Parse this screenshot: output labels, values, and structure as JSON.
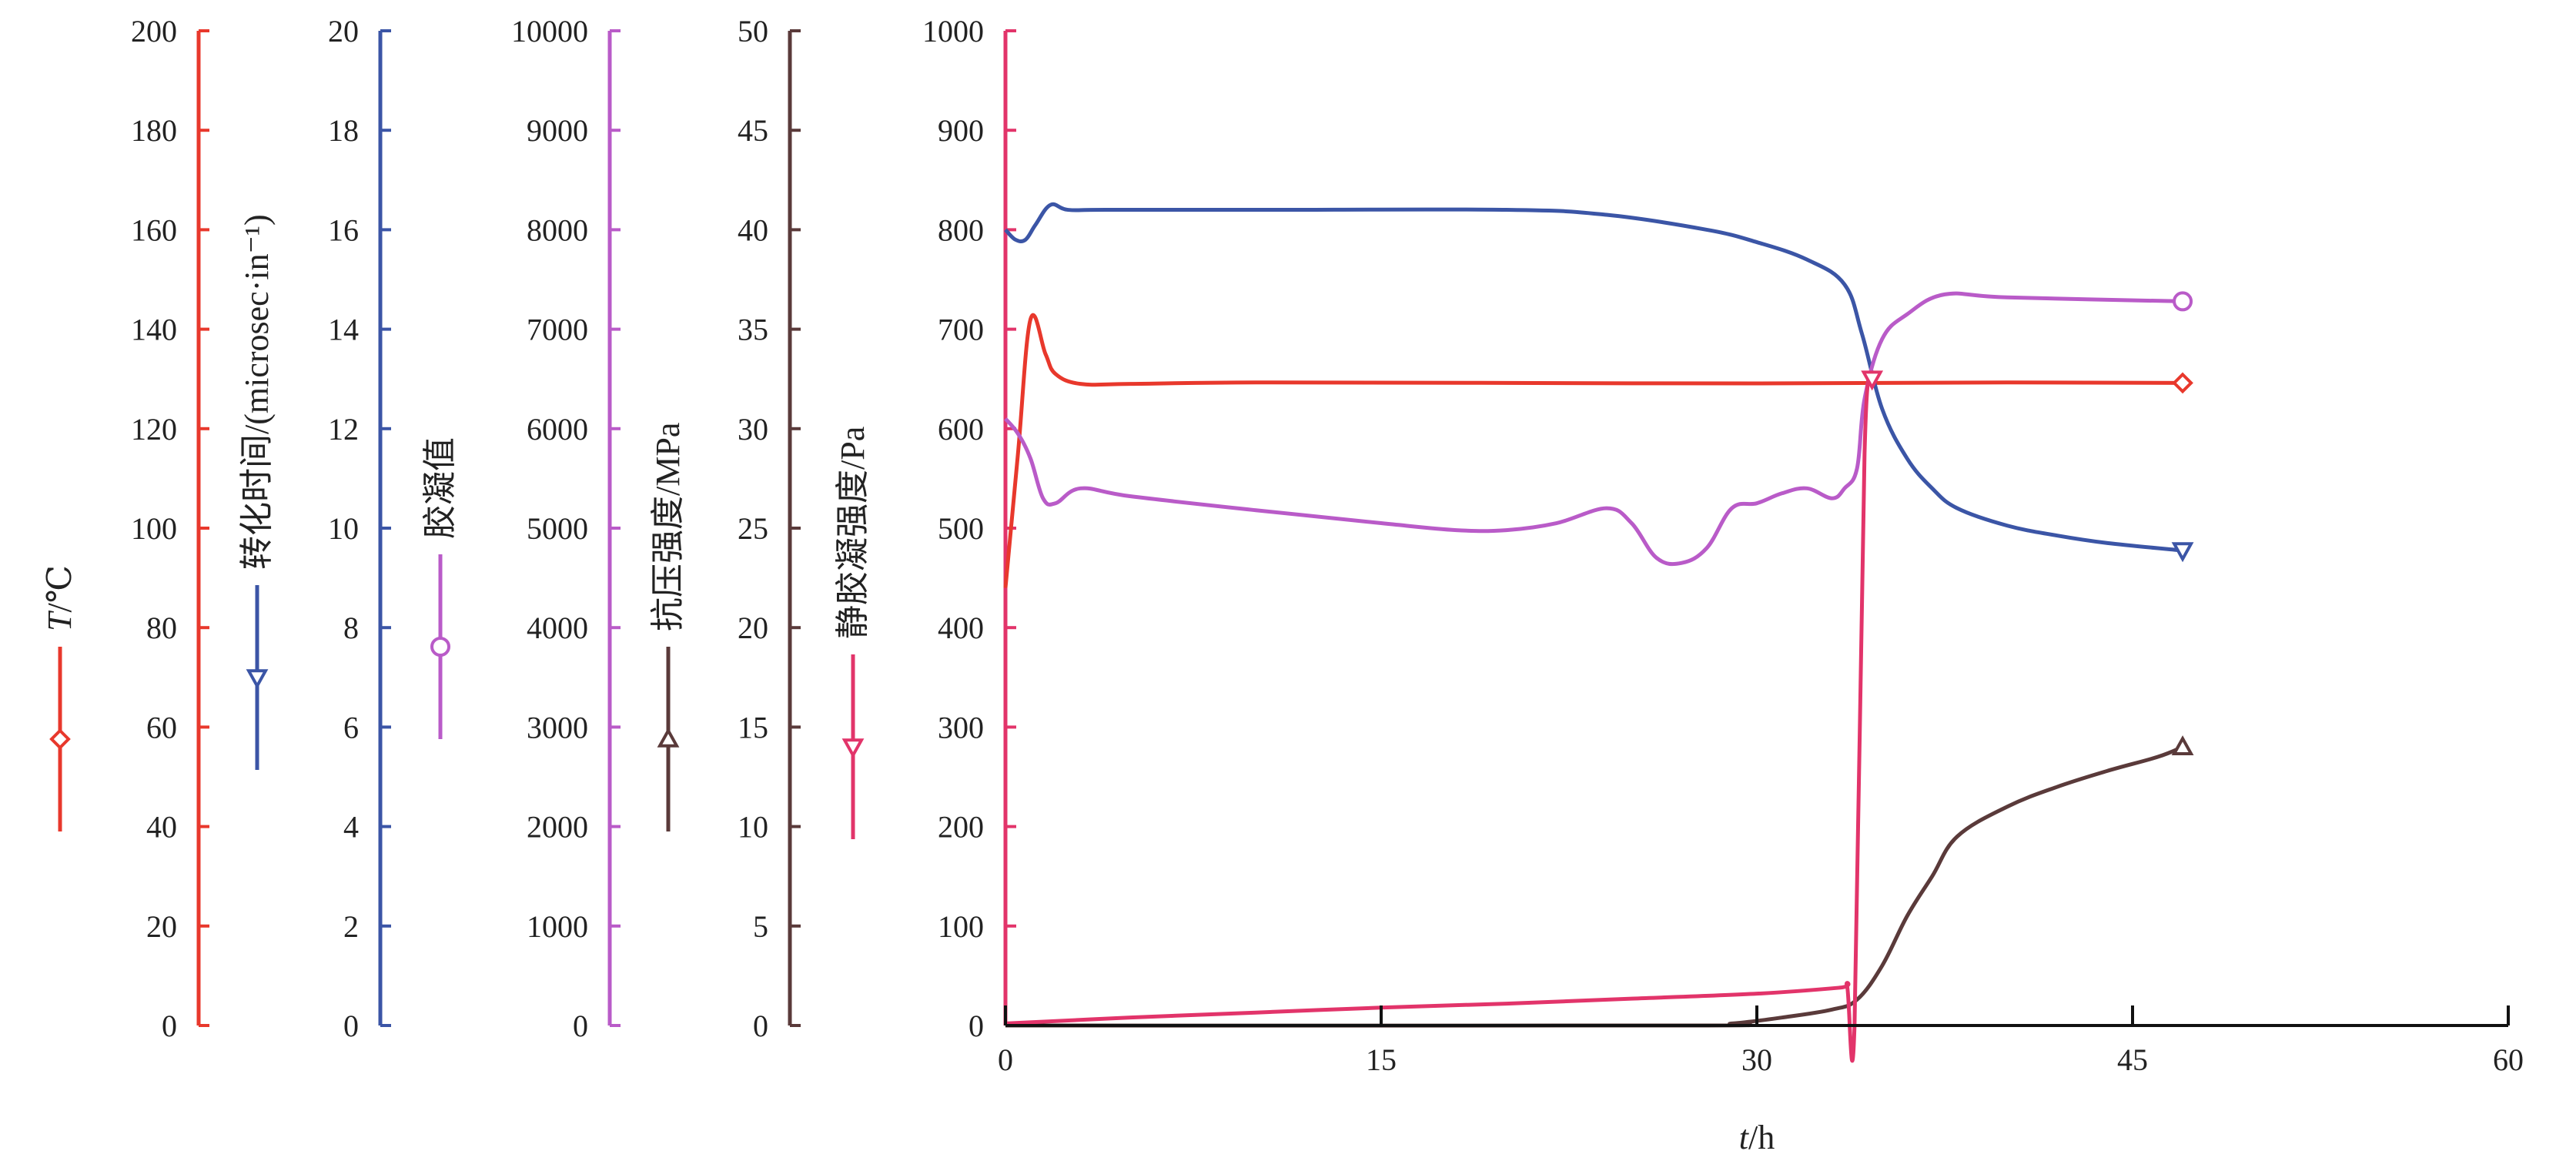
{
  "chart_data": {
    "type": "line",
    "xlabel": "t/h",
    "xlabel_parts": {
      "var": "t",
      "unit": "/h"
    },
    "xlim": [
      0,
      60
    ],
    "xticks": [
      0,
      15,
      30,
      45,
      60
    ],
    "axes": [
      {
        "id": "temperature",
        "label": "T/℃",
        "label_var": "T",
        "label_unit": "/℃",
        "range": [
          0,
          200
        ],
        "step": 20,
        "color": "#e8382c",
        "marker": "diamond",
        "ticks": [
          "0",
          "20",
          "40",
          "60",
          "80",
          "100",
          "120",
          "140",
          "160",
          "180",
          "200"
        ]
      },
      {
        "id": "transit_time",
        "label": "转化时间/(microsec·in⁻¹)",
        "range": [
          0,
          20
        ],
        "step": 2,
        "color": "#3b55a6",
        "marker": "triangle-down",
        "ticks": [
          "0",
          "2",
          "4",
          "6",
          "8",
          "10",
          "12",
          "14",
          "16",
          "18",
          "20"
        ]
      },
      {
        "id": "gel_value",
        "label": "胶凝值",
        "range": [
          0,
          10000
        ],
        "step": 1000,
        "color": "#b95bc8",
        "marker": "circle",
        "ticks": [
          "0",
          "1000",
          "2000",
          "3000",
          "4000",
          "5000",
          "6000",
          "7000",
          "8000",
          "9000",
          "10000"
        ]
      },
      {
        "id": "compressive",
        "label": "抗压强度/MPa",
        "range": [
          0,
          50
        ],
        "step": 5,
        "color": "#5a3a3a",
        "marker": "triangle-up",
        "ticks": [
          "0",
          "5",
          "10",
          "15",
          "20",
          "25",
          "30",
          "35",
          "40",
          "45",
          "50"
        ]
      },
      {
        "id": "sgs",
        "label": "静胶凝强度/Pa",
        "range": [
          0,
          1000
        ],
        "step": 100,
        "color": "#e2346a",
        "marker": "triangle-down",
        "ticks": [
          "0",
          "100",
          "200",
          "300",
          "400",
          "500",
          "600",
          "700",
          "800",
          "900",
          "1000"
        ]
      }
    ],
    "series": [
      {
        "axis": "temperature",
        "color": "#e8382c",
        "x": [
          0,
          0.5,
          1,
          1.6,
          2,
          3,
          5,
          10,
          20,
          30,
          40,
          47
        ],
        "y": [
          88,
          115,
          142,
          135,
          131,
          129,
          129,
          129.3,
          129.2,
          129.1,
          129.3,
          129.2
        ]
      },
      {
        "axis": "transit_time",
        "color": "#3b55a6",
        "x": [
          0,
          0.4,
          0.8,
          1.2,
          1.8,
          2.5,
          4,
          10,
          20,
          24,
          28,
          30,
          32,
          33.5,
          34.2,
          35,
          36,
          37,
          38,
          40,
          42,
          44,
          47
        ],
        "y": [
          16.0,
          15.8,
          15.8,
          16.1,
          16.5,
          16.4,
          16.4,
          16.4,
          16.4,
          16.3,
          16.0,
          15.75,
          15.4,
          14.9,
          13.9,
          12.4,
          11.4,
          10.8,
          10.4,
          10.05,
          9.85,
          9.7,
          9.55
        ]
      },
      {
        "axis": "gel_value",
        "color": "#b95bc8",
        "x": [
          0,
          0.5,
          1,
          1.5,
          2,
          3,
          5,
          10,
          15,
          18,
          20,
          22,
          24,
          25,
          26,
          27,
          28,
          29,
          30,
          31,
          32,
          33,
          33.5,
          34,
          34.3,
          35,
          36,
          37.5,
          40,
          47
        ],
        "y": [
          6100,
          5950,
          5700,
          5300,
          5250,
          5400,
          5320,
          5180,
          5050,
          4980,
          4980,
          5050,
          5200,
          5050,
          4700,
          4650,
          4800,
          5200,
          5250,
          5350,
          5400,
          5300,
          5400,
          5600,
          6300,
          6900,
          7150,
          7350,
          7320,
          7280
        ]
      },
      {
        "axis": "compressive",
        "color": "#5a3a3a",
        "x": [
          0,
          27,
          29,
          31,
          33,
          34,
          35,
          36,
          37,
          38,
          40,
          42,
          44,
          46,
          47
        ],
        "y": [
          0,
          0,
          0.1,
          0.4,
          0.8,
          1.3,
          3.0,
          5.5,
          7.5,
          9.5,
          11.0,
          12.0,
          12.8,
          13.5,
          14.0
        ]
      },
      {
        "axis": "sgs",
        "color": "#e2346a",
        "x": [
          0,
          5,
          10,
          15,
          20,
          25,
          30,
          33.3,
          33.6,
          33.9,
          34.3,
          34.6
        ],
        "y": [
          2,
          8,
          13,
          18,
          22,
          27,
          32,
          38,
          40,
          0,
          575,
          650
        ]
      }
    ]
  }
}
